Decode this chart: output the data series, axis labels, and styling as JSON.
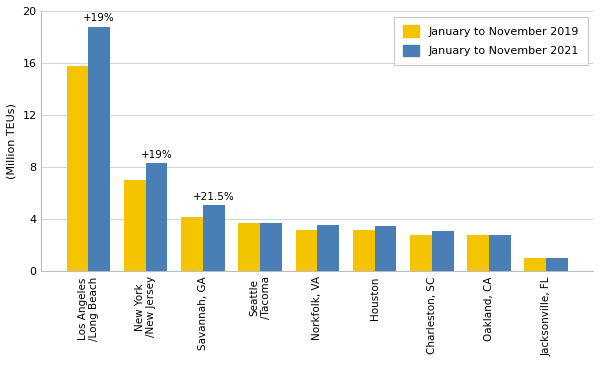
{
  "categories": [
    "Los Angeles\n/Long Beach",
    "New York\n/New Jersey",
    "Savannah, GA",
    "Seattle\n/Tacoma",
    "Norkfolk, VA",
    "Houston",
    "Charleston, SC",
    "Oakland, CA",
    "Jacksonville, FL"
  ],
  "values_2019": [
    15.8,
    7.0,
    4.2,
    3.7,
    3.2,
    3.2,
    2.8,
    2.8,
    1.0
  ],
  "values_2021": [
    18.8,
    8.33,
    5.1,
    3.7,
    3.6,
    3.5,
    3.1,
    2.8,
    1.0
  ],
  "annotations": [
    {
      "index": 0,
      "text": "+19%"
    },
    {
      "index": 1,
      "text": "+19%"
    },
    {
      "index": 2,
      "text": "+21.5%"
    }
  ],
  "color_2019": "#F5C400",
  "color_2021": "#4A7FB5",
  "ylabel": "(Million TEUs)",
  "ylim": [
    0,
    20
  ],
  "yticks": [
    0,
    4,
    8,
    12,
    16,
    20
  ],
  "legend_labels": [
    "January to November 2019",
    "January to November 2021"
  ],
  "bar_width": 0.38,
  "background_color": "#ffffff",
  "grid_color": "#cccccc"
}
